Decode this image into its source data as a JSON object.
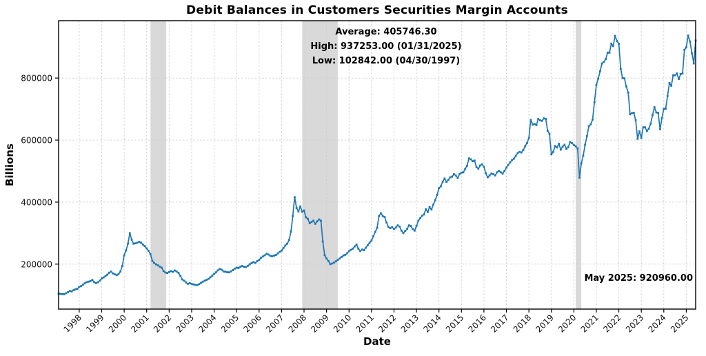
{
  "title": "Debit Balances in Customers Securities Margin Accounts",
  "annotations": {
    "average": "Average: 405746.30",
    "high": "High: 937253.00 (01/31/2025)",
    "low": "Low: 102842.00 (04/30/1997)",
    "latest": "May 2025: 920960.00"
  },
  "chart_data": {
    "type": "line",
    "title": "Debit Balances in Customers Securities Margin Accounts",
    "xlabel": "Date",
    "ylabel": "Billions",
    "grid": true,
    "line_color": "#1f77b4",
    "band_color": "#d9d9d9",
    "marker": "square",
    "xlim": [
      1997.0833,
      2025.4167
    ],
    "ylim": [
      55000,
      985000
    ],
    "x_ticks": [
      1998,
      1999,
      2000,
      2001,
      2002,
      2003,
      2004,
      2005,
      2006,
      2007,
      2008,
      2009,
      2010,
      2011,
      2012,
      2013,
      2014,
      2015,
      2016,
      2017,
      2018,
      2019,
      2020,
      2021,
      2022,
      2023,
      2024,
      2025
    ],
    "x_tick_labels": [
      "1998",
      "1999",
      "2000",
      "2001",
      "2002",
      "2003",
      "2004",
      "2005",
      "2006",
      "2007",
      "2008",
      "2009",
      "2010",
      "2011",
      "2012",
      "2013",
      "2014",
      "2015",
      "2016",
      "2017",
      "2018",
      "2019",
      "2020",
      "2021",
      "2022",
      "2023",
      "2024",
      "2025"
    ],
    "y_ticks": [
      200000,
      400000,
      600000,
      800000
    ],
    "y_tick_labels": [
      "200000",
      "400000",
      "600000",
      "800000"
    ],
    "recession_bands": [
      [
        2001.17,
        2001.87
      ],
      [
        2007.92,
        2009.5
      ],
      [
        2020.08,
        2020.33
      ]
    ],
    "stats": {
      "average": 405746.3,
      "high": {
        "value": 937253.0,
        "date": "01/31/2025"
      },
      "low": {
        "value": 102842.0,
        "date": "04/30/1997"
      },
      "latest": {
        "label": "May 2025",
        "value": 920960.0
      }
    },
    "series": [
      {
        "name": "Debit Balances in Customers Securities Margin Accounts",
        "frequency": "monthly",
        "start_label": "Jan 1997",
        "end_label": "May 2025",
        "x_start": 1997.0833,
        "x_step": 0.0833333,
        "values": [
          105000,
          104000,
          103200,
          102842,
          106300,
          109500,
          113500,
          112000,
          116000,
          118500,
          120500,
          126700,
          129000,
          133500,
          138000,
          142000,
          143500,
          145500,
          149000,
          141500,
          139000,
          141500,
          146500,
          154000,
          157000,
          161000,
          166000,
          172500,
          176000,
          170000,
          167000,
          164500,
          168000,
          176000,
          194000,
          228500,
          244000,
          266000,
          300000,
          279000,
          266000,
          267000,
          269000,
          272000,
          269000,
          263000,
          258000,
          250500,
          243000,
          232000,
          211000,
          203500,
          199500,
          196000,
          192000,
          188500,
          178000,
          173000,
          171500,
          174500,
          177500,
          175000,
          179500,
          176000,
          172000,
          162000,
          150500,
          146500,
          141000,
          136500,
          139000,
          136500,
          134500,
          133000,
          132500,
          135500,
          139500,
          143500,
          146500,
          149500,
          152500,
          157500,
          163000,
          168500,
          173500,
          180000,
          184500,
          182000,
          176500,
          175500,
          174000,
          173500,
          176500,
          180500,
          185500,
          188500,
          187500,
          191500,
          194000,
          191000,
          190500,
          194500,
          199500,
          203000,
          206500,
          204000,
          209500,
          213500,
          220500,
          224500,
          228500,
          233500,
          231000,
          226500,
          225500,
          227500,
          229500,
          234500,
          239500,
          243500,
          252000,
          260000,
          266000,
          278000,
          305000,
          355000,
          416000,
          381000,
          370000,
          386000,
          369000,
          373000,
          351000,
          346000,
          332000,
          336000,
          340000,
          330000,
          338000,
          344000,
          340000,
          273000,
          229000,
          218000,
          210000,
          200000,
          202000,
          205000,
          209000,
          214000,
          218000,
          223000,
          228000,
          230000,
          235000,
          242000,
          246000,
          250000,
          257000,
          263000,
          250000,
          242000,
          247000,
          245000,
          253000,
          261000,
          269000,
          276000,
          290000,
          304000,
          317000,
          355000,
          364000,
          355000,
          352000,
          334000,
          320000,
          316000,
          319000,
          313000,
          318000,
          325000,
          321000,
          308000,
          300000,
          307000,
          313000,
          325000,
          323000,
          313000,
          308000,
          323000,
          340000,
          348000,
          356000,
          360000,
          377000,
          368000,
          384000,
          376000,
          392000,
          406000,
          423000,
          445000,
          451000,
          466000,
          476000,
          465000,
          472000,
          480000,
          482000,
          490000,
          486000,
          478000,
          490000,
          495000,
          496000,
          507000,
          517000,
          541000,
          538000,
          532000,
          534000,
          513000,
          508000,
          518000,
          522000,
          514000,
          493000,
          480000,
          486000,
          492000,
          490000,
          486000,
          496000,
          501000,
          496000,
          492000,
          501000,
          511000,
          520000,
          528000,
          536000,
          540000,
          549000,
          558000,
          562000,
          560000,
          568000,
          580000,
          590000,
          607000,
          665000,
          650000,
          652000,
          648000,
          668000,
          664000,
          662000,
          670000,
          668000,
          630000,
          620000,
          554000,
          562000,
          581000,
          576000,
          588000,
          569000,
          579000,
          585000,
          572000,
          577000,
          594000,
          590000,
          584000,
          580000,
          573000,
          479000,
          525000,
          550000,
          585000,
          613000,
          645000,
          651000,
          666000,
          722000,
          778000,
          798000,
          822000,
          847000,
          852000,
          861000,
          882000,
          882000,
          911000,
          903000,
          936000,
          919000,
          910000,
          830000,
          800000,
          799000,
          773000,
          753000,
          683000,
          687000,
          688000,
          664000,
          604000,
          628000,
          607000,
          641000,
          641000,
          629000,
          637000,
          653000,
          681000,
          706000,
          689000,
          688000,
          635000,
          671000,
          701000,
          701000,
          742000,
          784000,
          775000,
          809000,
          809000,
          815000,
          797000,
          813000,
          815000,
          891000,
          899000,
          937253,
          918000,
          880000,
          847000,
          920960
        ]
      }
    ]
  }
}
